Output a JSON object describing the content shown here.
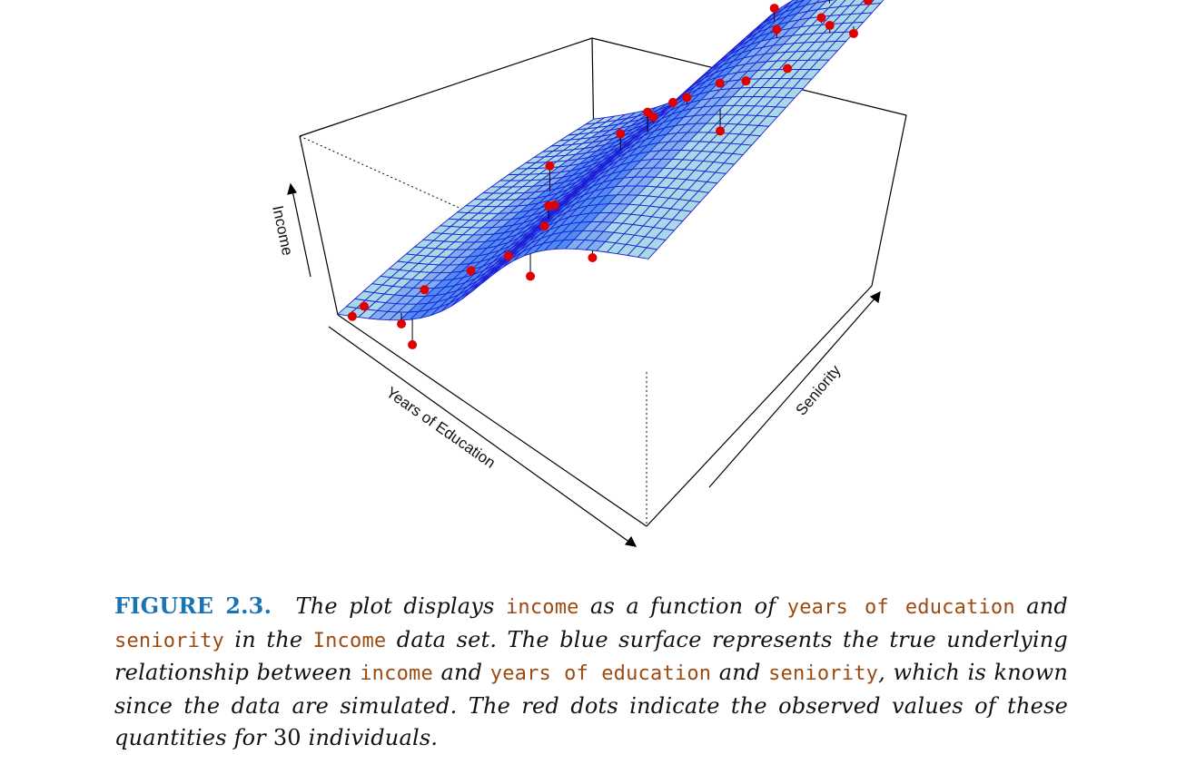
{
  "figure": {
    "axis_labels": {
      "x": "Years of Education",
      "y": "Seniority",
      "z": "Income"
    },
    "colors": {
      "surface_top": "#4f8cf0",
      "surface_under": "#a9d8e6",
      "grid": "#1f1fd6",
      "points": "#e00000",
      "box": "#000000"
    }
  },
  "caption": {
    "label": "FIGURE 2.3.",
    "s1": "The plot displays",
    "c1": "income",
    "s2": "as a function of",
    "c2": "years of education",
    "s3": "and",
    "c3": "seniority",
    "s4": "in the",
    "c4": "Income",
    "s5": "data set. The blue surface represents the true underlying relationship between",
    "c5": "income",
    "s6": "and",
    "c6": "years of education",
    "s7": "and",
    "c7": "seniority",
    "s8": ", which is known since the data are simulated. The red dots indicate the observed values of these quantities for",
    "n1": "30",
    "s9": "individuals."
  }
}
